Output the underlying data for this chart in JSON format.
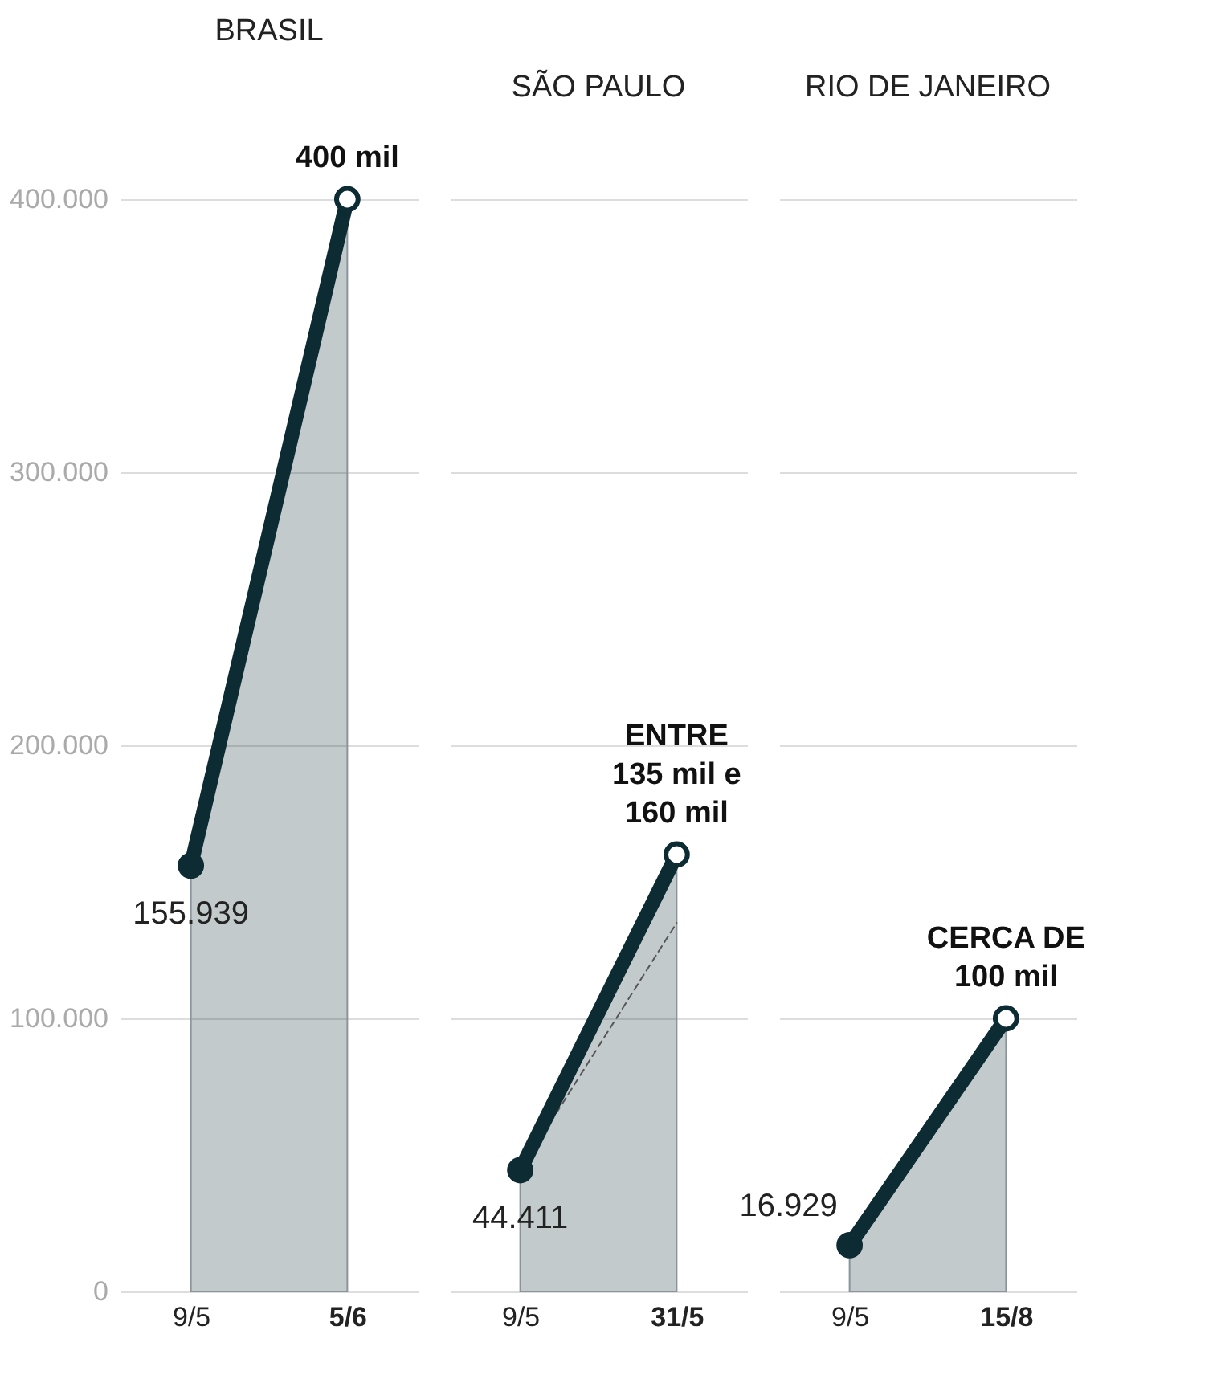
{
  "chart_data": [
    {
      "type": "area",
      "title": "BRASIL",
      "categories": [
        "9/5",
        "5/6"
      ],
      "ylim": [
        0,
        400000
      ],
      "yticks": [
        {
          "value": 0,
          "label": "0"
        },
        {
          "value": 100000,
          "label": "100.000"
        },
        {
          "value": 200000,
          "label": "200.000"
        },
        {
          "value": 300000,
          "label": "300.000"
        },
        {
          "value": 400000,
          "label": "400.000"
        }
      ],
      "grid": "y",
      "marker": "circle",
      "series": [
        {
          "color": "#0d2b33",
          "values": [
            155939,
            400000
          ],
          "value_labels": [
            "155.939",
            null
          ]
        }
      ],
      "annotations": [
        {
          "text": "400 mil",
          "x": "5/6",
          "y": 400000
        }
      ]
    },
    {
      "type": "area",
      "title": "SÃO PAULO",
      "categories": [
        "9/5",
        "31/5"
      ],
      "ylim": [
        0,
        400000
      ],
      "yticks": [
        {
          "value": 0,
          "label": null
        },
        {
          "value": 100000,
          "label": null
        },
        {
          "value": 200000,
          "label": null
        },
        {
          "value": 300000,
          "label": null
        },
        {
          "value": 400000,
          "label": null
        }
      ],
      "grid": "y",
      "marker": "circle",
      "tick_labels": "x",
      "series": [
        {
          "color": "#0d2b33",
          "values": [
            44411,
            160000
          ],
          "value_labels": [
            "44.411",
            null
          ]
        },
        {
          "type": "line",
          "color": "#555555",
          "line_style": "dashed",
          "marker": "none",
          "values": [
            44411,
            135000
          ]
        }
      ],
      "annotations": [
        {
          "text": "ENTRE\n135 mil e\n160 mil",
          "x": "31/5",
          "y": 160000
        }
      ]
    },
    {
      "type": "area",
      "title": "RIO DE JANEIRO",
      "categories": [
        "9/5",
        "15/8"
      ],
      "ylim": [
        0,
        400000
      ],
      "yticks": [
        {
          "value": 0,
          "label": null
        },
        {
          "value": 100000,
          "label": null
        },
        {
          "value": 200000,
          "label": null
        },
        {
          "value": 300000,
          "label": null
        },
        {
          "value": 400000,
          "label": null
        }
      ],
      "grid": "y",
      "marker": "circle",
      "tick_labels": "x",
      "series": [
        {
          "color": "#0d2b33",
          "values": [
            16929,
            100000
          ],
          "value_labels": [
            "16.929",
            null
          ]
        }
      ],
      "annotations": [
        {
          "text": "CERCA DE\n100 mil",
          "x": "15/8",
          "y": 100000
        }
      ]
    }
  ]
}
